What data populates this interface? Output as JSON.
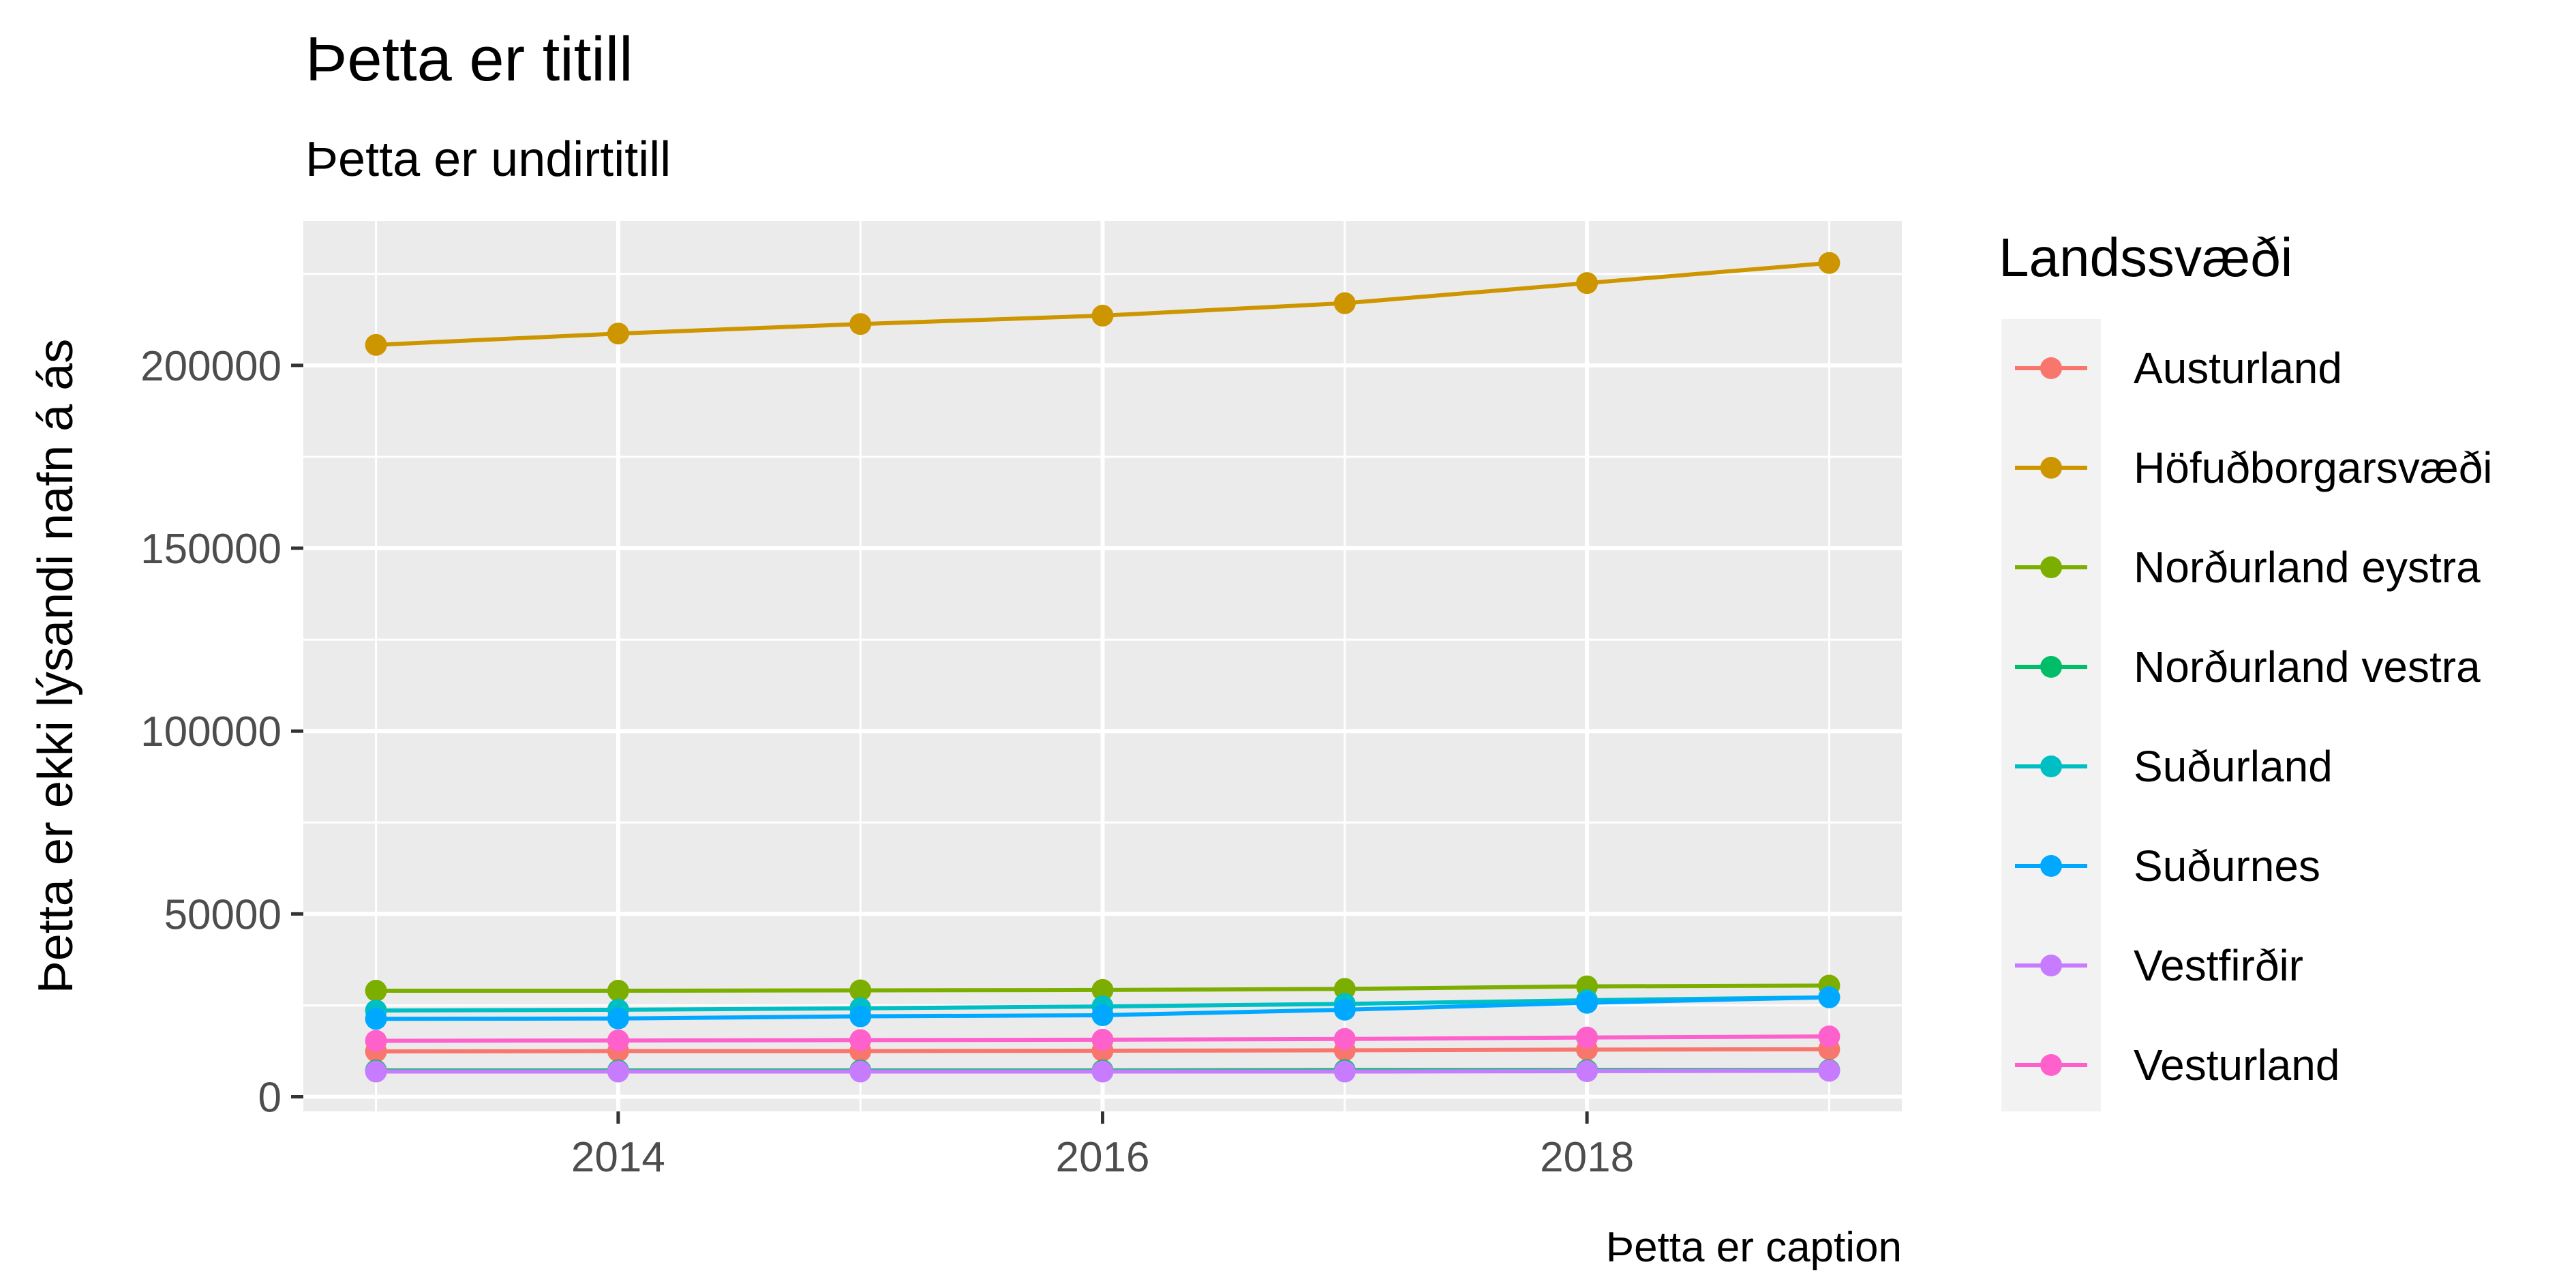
{
  "chart_data": {
    "type": "line",
    "title": "Þetta er titill",
    "subtitle": "Þetta er undirtitill",
    "caption": "Þetta er caption",
    "xlabel": "",
    "ylabel": "Þetta er ekki lýsandi nafn á ás",
    "x": [
      2013,
      2014,
      2015,
      2016,
      2017,
      2018,
      2019
    ],
    "xlim": [
      2012.7,
      2019.3
    ],
    "ylim": [
      -4000,
      239500
    ],
    "x_ticks": [
      2014,
      2016,
      2018
    ],
    "x_tick_labels": [
      "2014",
      "2016",
      "2018"
    ],
    "y_ticks": [
      0,
      50000,
      100000,
      150000,
      200000
    ],
    "y_tick_labels": [
      "0",
      "50000",
      "100000",
      "150000",
      "200000"
    ],
    "grid": true,
    "legend_title": "Landssvæði",
    "legend_position": "right",
    "panel_background": "#ebebeb",
    "series": [
      {
        "name": "Austurland",
        "color": "#F8766D",
        "values": [
          12400,
          12500,
          12500,
          12600,
          12700,
          12900,
          13000
        ]
      },
      {
        "name": "Höfuðborgarsvæði",
        "color": "#CD9600",
        "values": [
          205600,
          208700,
          211300,
          213600,
          217000,
          222500,
          228000
        ]
      },
      {
        "name": "Norðurland eystra",
        "color": "#7CAE00",
        "values": [
          29000,
          29000,
          29100,
          29200,
          29500,
          30200,
          30400
        ]
      },
      {
        "name": "Norðurland vestra",
        "color": "#00BE67",
        "values": [
          7200,
          7200,
          7200,
          7200,
          7300,
          7300,
          7300
        ]
      },
      {
        "name": "Suðurland",
        "color": "#00BFC4",
        "values": [
          23600,
          23800,
          24200,
          24700,
          25400,
          26400,
          27200
        ]
      },
      {
        "name": "Suðurnes",
        "color": "#00A9FF",
        "values": [
          21300,
          21400,
          22000,
          22300,
          23800,
          25700,
          27200
        ]
      },
      {
        "name": "Vestfirðir",
        "color": "#C77CFF",
        "values": [
          6900,
          6900,
          6900,
          6900,
          6900,
          7000,
          7100
        ]
      },
      {
        "name": "Vesturland",
        "color": "#FF61CC",
        "values": [
          15300,
          15400,
          15500,
          15600,
          15800,
          16200,
          16500
        ]
      }
    ]
  }
}
